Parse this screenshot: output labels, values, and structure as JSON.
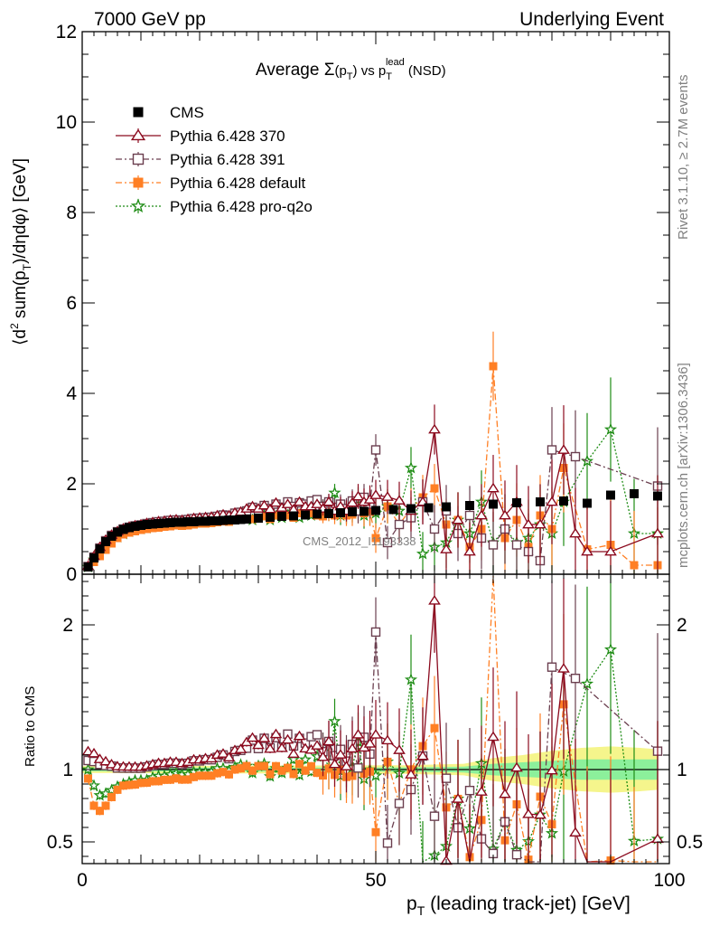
{
  "header": {
    "left": "7000 GeV pp",
    "right": "Underlying Event"
  },
  "side_labels": {
    "top": "Rivet 3.1.10, ≥ 2.7M events",
    "bottom": "mcplots.cern.ch [arXiv:1306.3436]"
  },
  "watermark": "CMS_2012_I1193338",
  "title": {
    "prefix": "Average ",
    "sigma": "Σ",
    "paren_open": "(p",
    "paren_sub": "T",
    "paren_close": ")",
    "mid": " vs p",
    "mid_sub": "T",
    "mid_sup": "lead",
    "suffix": " (NSD)"
  },
  "ylabel": {
    "part1": "⟨d",
    "sup": "2",
    "part2": " sum(p",
    "sub": "T",
    "part3": ")/dηdφ⟩ [GeV]"
  },
  "ratio_ylabel": "Ratio to CMS",
  "xlabel": {
    "p": "p",
    "sub": "T",
    "rest": " (leading track-jet) [GeV]"
  },
  "colors": {
    "cms": "#000000",
    "py370": "#8b0a1e",
    "py391": "#6b3f4f",
    "pydefault": "#ff7f24",
    "pyq2o": "#1e8c14",
    "band_inner": "#8cf09b",
    "band_outer": "#f5f58c"
  },
  "chart_data": {
    "type": "scatter",
    "x_label": "p_T (leading track-jet) [GeV]",
    "y_label": "⟨d² sum(p_T)/dηdφ⟩ [GeV]",
    "xlim": [
      0,
      100
    ],
    "ylim": [
      0,
      12
    ],
    "ratio_ylim": [
      0.35,
      2.35
    ],
    "x_ticks": [
      0,
      50,
      100
    ],
    "y_ticks": [
      0,
      2,
      4,
      6,
      8,
      10,
      12
    ],
    "ratio_ticks": [
      0.5,
      1,
      2
    ],
    "legend_position": "top-left",
    "series": [
      {
        "name": "CMS",
        "key": "cms",
        "marker": "filled-square",
        "line": "none",
        "x": [
          1,
          2,
          3,
          4,
          5,
          6,
          7,
          8,
          9,
          10,
          11,
          12,
          13,
          14,
          15,
          16,
          17,
          18,
          19,
          20,
          21,
          22,
          23,
          24,
          25,
          26,
          27,
          28,
          30,
          32,
          34,
          36,
          38,
          40,
          42,
          44,
          46,
          48,
          50,
          53,
          56,
          59,
          62,
          66,
          70,
          74,
          78,
          82,
          86,
          90,
          94,
          98
        ],
        "y": [
          0.16,
          0.36,
          0.56,
          0.72,
          0.84,
          0.93,
          0.99,
          1.03,
          1.06,
          1.08,
          1.1,
          1.11,
          1.12,
          1.13,
          1.14,
          1.15,
          1.15,
          1.16,
          1.16,
          1.17,
          1.17,
          1.18,
          1.18,
          1.19,
          1.2,
          1.2,
          1.21,
          1.22,
          1.24,
          1.26,
          1.28,
          1.29,
          1.31,
          1.33,
          1.34,
          1.36,
          1.38,
          1.39,
          1.41,
          1.43,
          1.45,
          1.47,
          1.49,
          1.52,
          1.55,
          1.58,
          1.6,
          1.62,
          1.57,
          1.75,
          1.78,
          1.73
        ]
      },
      {
        "name": "Pythia 6.428 370",
        "key": "py370",
        "marker": "open-triangle",
        "line": "solid",
        "x": [
          1,
          2,
          3,
          4,
          5,
          6,
          7,
          8,
          9,
          10,
          11,
          12,
          13,
          14,
          15,
          16,
          17,
          18,
          19,
          20,
          21,
          22,
          23,
          24,
          25,
          26,
          27,
          28,
          29,
          30,
          31,
          32,
          33,
          34,
          35,
          36,
          37,
          38,
          39,
          40,
          41,
          42,
          43,
          44,
          45,
          46,
          47,
          48,
          49,
          50,
          52,
          54,
          56,
          58,
          60,
          62,
          64,
          66,
          68,
          70,
          72,
          74,
          76,
          78,
          80,
          82,
          84,
          86,
          90,
          98
        ],
        "y": [
          0.18,
          0.4,
          0.6,
          0.76,
          0.87,
          0.95,
          1.01,
          1.05,
          1.08,
          1.1,
          1.13,
          1.15,
          1.17,
          1.18,
          1.2,
          1.21,
          1.2,
          1.22,
          1.24,
          1.25,
          1.26,
          1.27,
          1.3,
          1.32,
          1.3,
          1.36,
          1.38,
          1.45,
          1.5,
          1.45,
          1.52,
          1.44,
          1.58,
          1.47,
          1.55,
          1.43,
          1.6,
          1.5,
          1.5,
          1.55,
          1.45,
          1.6,
          1.4,
          1.5,
          1.4,
          1.58,
          1.72,
          1.6,
          1.65,
          1.75,
          1.71,
          1.63,
          1.4,
          1.6,
          3.2,
          0.55,
          1.2,
          0.5,
          1.3,
          1.9,
          1.3,
          1.6,
          1.1,
          1.1,
          1.6,
          2.75,
          0.9,
          0.5,
          0.5,
          0.9
        ]
      },
      {
        "name": "Pythia 6.428 391",
        "key": "py391",
        "marker": "open-square",
        "line": "dash-dot",
        "x": [
          1,
          2,
          3,
          4,
          5,
          6,
          7,
          8,
          9,
          10,
          11,
          12,
          13,
          14,
          15,
          16,
          17,
          18,
          19,
          20,
          21,
          22,
          23,
          24,
          25,
          26,
          27,
          28,
          29,
          30,
          31,
          32,
          33,
          34,
          35,
          36,
          37,
          38,
          39,
          40,
          41,
          42,
          43,
          44,
          45,
          46,
          47,
          48,
          49,
          50,
          52,
          54,
          56,
          58,
          60,
          62,
          64,
          66,
          68,
          70,
          72,
          74,
          76,
          78,
          80,
          84,
          98
        ],
        "y": [
          0.17,
          0.38,
          0.58,
          0.74,
          0.86,
          0.94,
          1.0,
          1.04,
          1.07,
          1.09,
          1.12,
          1.14,
          1.16,
          1.17,
          1.19,
          1.2,
          1.19,
          1.21,
          1.23,
          1.24,
          1.25,
          1.26,
          1.28,
          1.31,
          1.29,
          1.35,
          1.37,
          1.4,
          1.48,
          1.42,
          1.52,
          1.45,
          1.55,
          1.48,
          1.6,
          1.5,
          1.58,
          1.55,
          1.62,
          1.65,
          1.5,
          1.6,
          1.48,
          1.55,
          1.45,
          1.62,
          1.4,
          1.7,
          1.55,
          2.75,
          0.7,
          1.1,
          1.25,
          1.6,
          1.0,
          1.4,
          0.9,
          1.3,
          0.8,
          0.65,
          1.0,
          0.65,
          0.5,
          0.3,
          2.75,
          2.6,
          1.95
        ]
      },
      {
        "name": "Pythia 6.428 default",
        "key": "pydefault",
        "marker": "filled-square",
        "line": "dash-dot",
        "x": [
          1,
          2,
          3,
          4,
          5,
          6,
          7,
          8,
          9,
          10,
          11,
          12,
          13,
          14,
          15,
          16,
          17,
          18,
          19,
          20,
          21,
          22,
          23,
          24,
          25,
          26,
          27,
          28,
          29,
          30,
          31,
          32,
          33,
          34,
          35,
          36,
          37,
          38,
          39,
          40,
          41,
          42,
          43,
          44,
          45,
          46,
          47,
          48,
          49,
          50,
          52,
          54,
          56,
          58,
          60,
          62,
          64,
          66,
          68,
          70,
          72,
          74,
          76,
          78,
          80,
          82,
          86,
          90,
          94,
          98
        ],
        "y": [
          0.15,
          0.27,
          0.4,
          0.54,
          0.68,
          0.8,
          0.88,
          0.92,
          0.95,
          0.98,
          1.0,
          1.02,
          1.03,
          1.05,
          1.06,
          1.08,
          1.07,
          1.08,
          1.1,
          1.12,
          1.12,
          1.13,
          1.15,
          1.17,
          1.16,
          1.2,
          1.22,
          1.25,
          1.22,
          1.27,
          1.28,
          1.22,
          1.3,
          1.27,
          1.3,
          1.25,
          1.35,
          1.3,
          1.35,
          1.3,
          1.28,
          1.35,
          1.3,
          1.36,
          1.3,
          1.32,
          1.4,
          1.35,
          1.38,
          0.8,
          1.5,
          1.1,
          1.45,
          1.7,
          1.9,
          1.1,
          1.2,
          0.6,
          1.0,
          4.6,
          0.8,
          1.2,
          0.6,
          1.3,
          1.0,
          2.35,
          0.55,
          0.65,
          0.2,
          0.2
        ]
      },
      {
        "name": "Pythia 6.428 pro-q2o",
        "key": "pyq2o",
        "marker": "open-star",
        "line": "dotted",
        "x": [
          1,
          2,
          3,
          4,
          5,
          6,
          7,
          8,
          9,
          10,
          11,
          12,
          13,
          14,
          15,
          16,
          17,
          18,
          19,
          20,
          21,
          22,
          23,
          24,
          25,
          26,
          27,
          28,
          29,
          30,
          31,
          32,
          33,
          34,
          35,
          36,
          37,
          38,
          39,
          40,
          41,
          42,
          43,
          44,
          45,
          46,
          47,
          48,
          49,
          50,
          52,
          54,
          56,
          58,
          60,
          62,
          64,
          66,
          68,
          70,
          72,
          74,
          76,
          78,
          80,
          82,
          86,
          90,
          94,
          98
        ],
        "y": [
          0.16,
          0.32,
          0.46,
          0.6,
          0.72,
          0.82,
          0.89,
          0.94,
          0.98,
          1.0,
          1.02,
          1.05,
          1.07,
          1.08,
          1.1,
          1.12,
          1.11,
          1.12,
          1.14,
          1.15,
          1.15,
          1.16,
          1.19,
          1.2,
          1.19,
          1.22,
          1.25,
          1.25,
          1.2,
          1.27,
          1.3,
          1.2,
          1.28,
          1.25,
          1.3,
          1.38,
          1.25,
          1.4,
          1.3,
          1.45,
          1.5,
          1.35,
          1.8,
          1.3,
          1.35,
          1.4,
          1.65,
          1.3,
          1.4,
          1.35,
          1.5,
          1.4,
          2.35,
          0.45,
          0.6,
          0.7,
          1.2,
          0.9,
          1.6,
          0.7,
          1.0,
          0.7,
          0.8,
          1.1,
          0.9,
          1.6,
          2.5,
          3.2,
          0.9,
          0.9
        ]
      }
    ]
  }
}
